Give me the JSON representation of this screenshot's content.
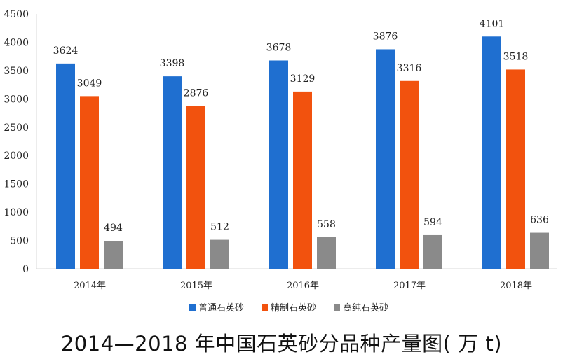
{
  "chart_data": {
    "type": "bar",
    "title": "2014—2018 年中国石英砂分品种产量图( 万 t)",
    "categories": [
      "2014年",
      "2015年",
      "2016年",
      "2017年",
      "2018年"
    ],
    "series": [
      {
        "name": "普通石英砂",
        "color": "#1f6fd0",
        "values": [
          3624,
          3398,
          3678,
          3876,
          4101
        ]
      },
      {
        "name": "精制石英砂",
        "color": "#f2520e",
        "values": [
          3049,
          2876,
          3129,
          3316,
          3518
        ]
      },
      {
        "name": "高纯石英砂",
        "color": "#8a8a8a",
        "values": [
          494,
          512,
          558,
          594,
          636
        ]
      }
    ],
    "ylim": [
      0,
      4500
    ],
    "yticks": [
      0,
      500,
      1000,
      1500,
      2000,
      2500,
      3000,
      3500,
      4000,
      4500
    ],
    "grid": false,
    "legend": "bottom"
  }
}
